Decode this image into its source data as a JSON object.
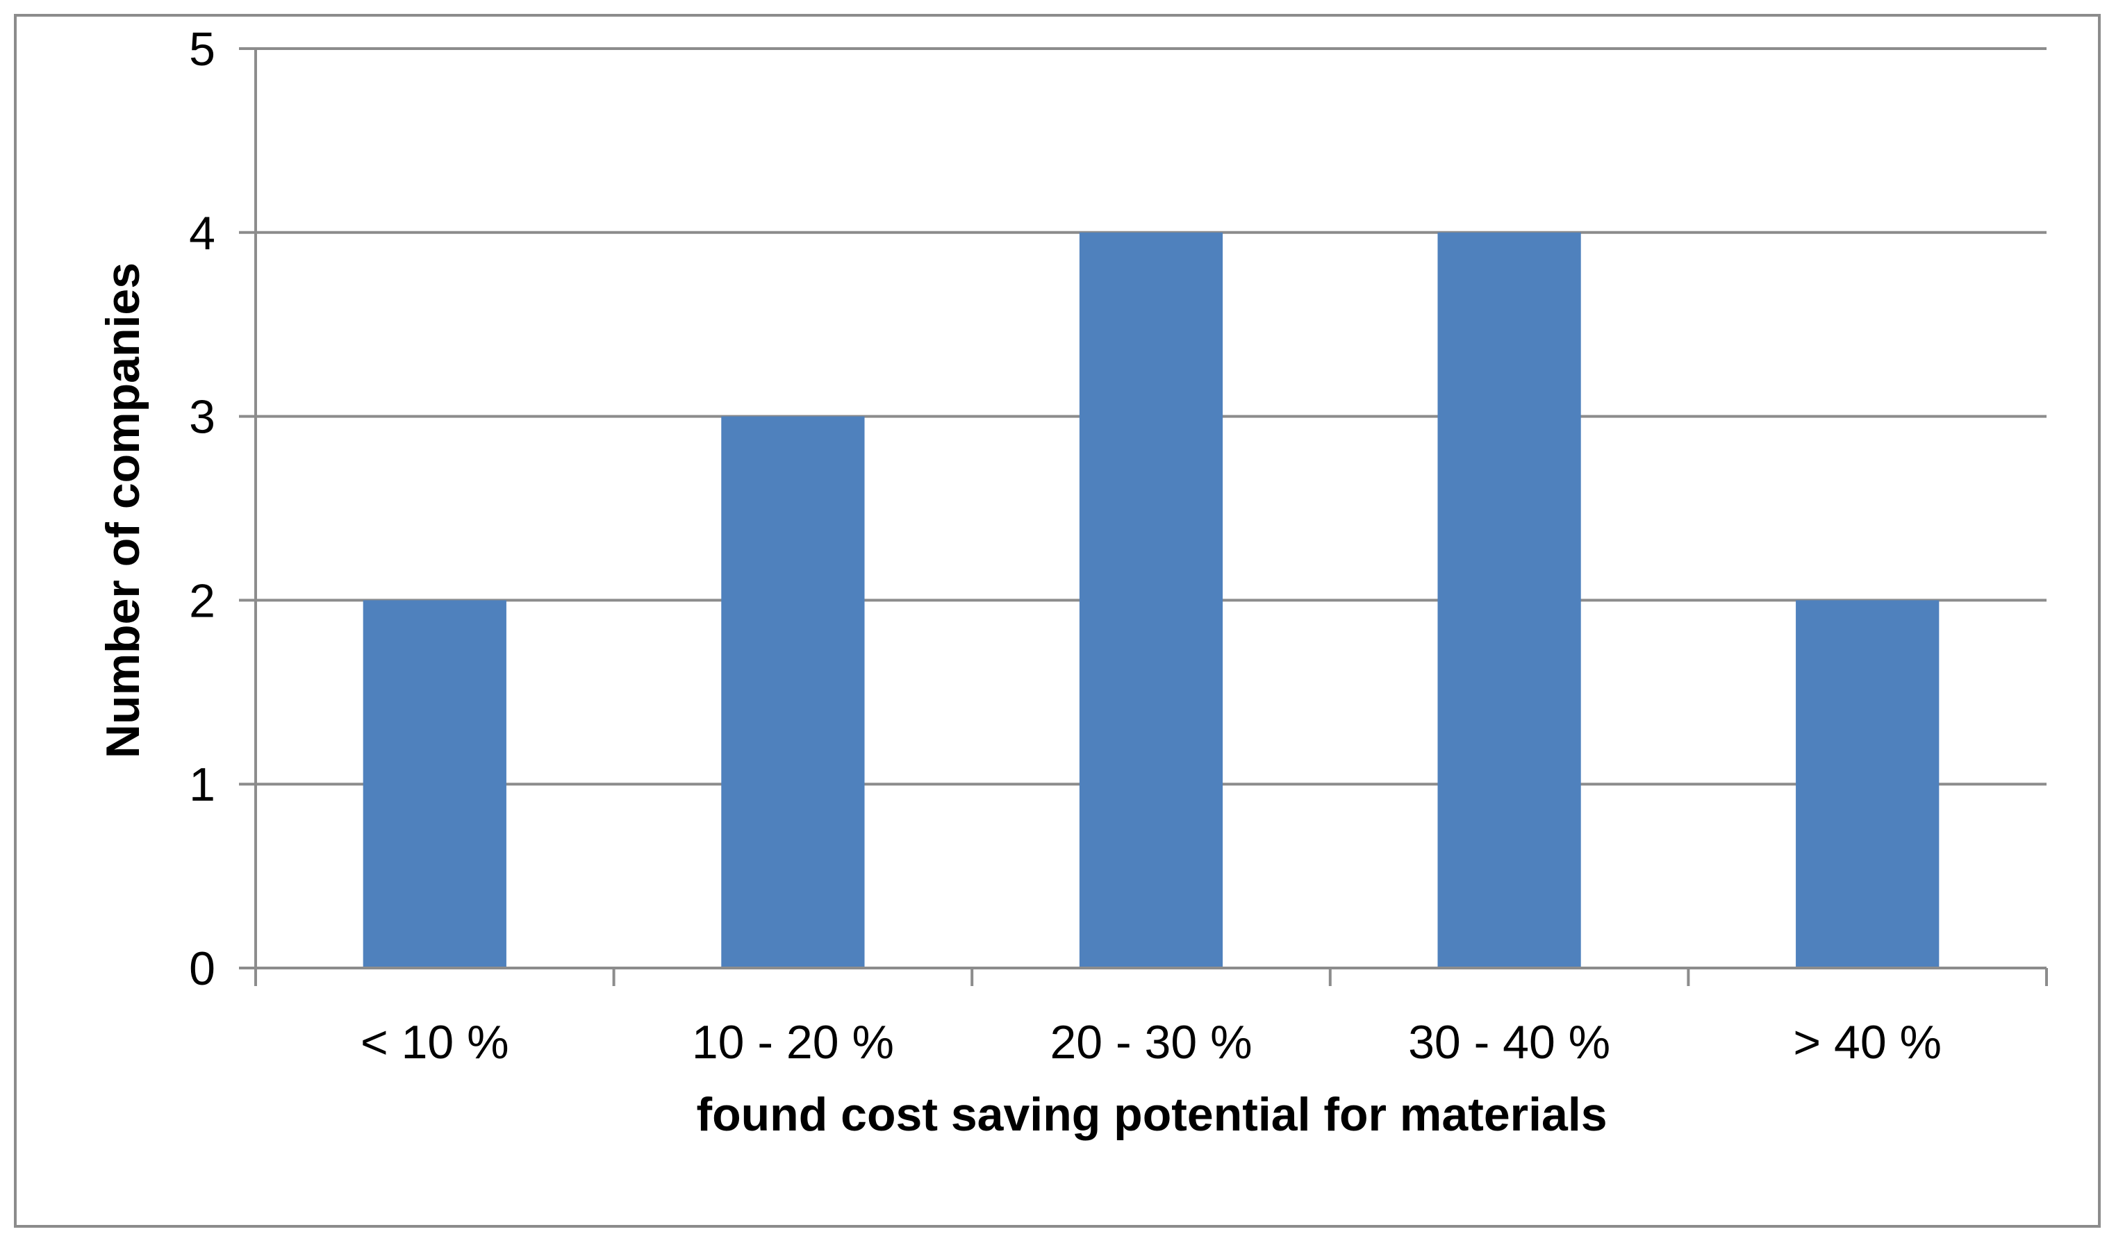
{
  "chart_data": {
    "type": "bar",
    "title": "",
    "categories": [
      "< 10 %",
      "10 - 20 %",
      "20 - 30 %",
      "30 - 40 %",
      "> 40 %"
    ],
    "values": [
      2,
      3,
      4,
      4,
      2
    ],
    "xlabel": "found cost saving potential for materials",
    "ylabel": "Number of companies",
    "ylim": [
      0,
      5
    ],
    "yticks": [
      "0",
      "1",
      "2",
      "3",
      "4",
      "5"
    ],
    "grid": true,
    "legend": "none",
    "colors": {
      "bar": "#4f81bd",
      "grid": "#8c8c8c",
      "axis": "#8c8c8c",
      "frame": "#8c8c8c"
    }
  }
}
